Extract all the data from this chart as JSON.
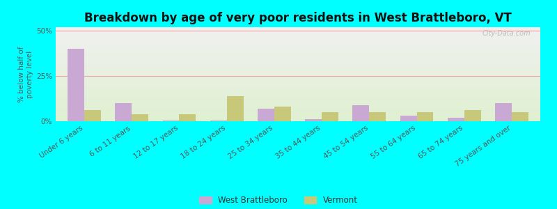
{
  "title": "Breakdown by age of very poor residents in West Brattleboro, VT",
  "ylabel": "% below half of\npoverty level",
  "categories": [
    "Under 6 years",
    "6 to 11 years",
    "12 to 17 years",
    "18 to 24 years",
    "25 to 34 years",
    "35 to 44 years",
    "45 to 54 years",
    "55 to 64 years",
    "65 to 74 years",
    "75 years and over"
  ],
  "west_brattleboro": [
    40,
    10,
    0.5,
    0.5,
    7,
    1,
    9,
    3,
    2,
    10
  ],
  "vermont": [
    6,
    4,
    4,
    14,
    8,
    5,
    5,
    5,
    6,
    5
  ],
  "wb_color": "#c9a8d4",
  "vt_color": "#c8c87a",
  "ylim": [
    0,
    52
  ],
  "ytick_labels": [
    "0%",
    "25%",
    "50%"
  ],
  "ytick_vals": [
    0,
    25,
    50
  ],
  "background_color": "#00ffff",
  "plot_bg_top": "#f0f0f0",
  "plot_bg_bottom": "#dff0d0",
  "grid_color": "#f0a0a0",
  "title_fontsize": 12,
  "axis_label_fontsize": 7.5,
  "tick_fontsize": 7.5,
  "legend_labels": [
    "West Brattleboro",
    "Vermont"
  ],
  "watermark": "City-Data.com"
}
